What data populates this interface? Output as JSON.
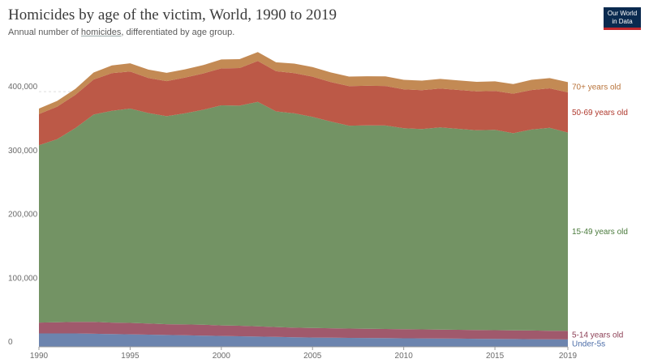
{
  "header": {
    "title": "Homicides by age of the victim, World, 1990 to 2019",
    "subtitle_prefix": "Annual number of ",
    "subtitle_link": "homicides",
    "subtitle_suffix": ", differentiated by age group."
  },
  "logo": {
    "line1": "Our World",
    "line2": "in Data"
  },
  "chart_data": {
    "type": "area",
    "stacked": true,
    "x": [
      1990,
      1991,
      1992,
      1993,
      1994,
      1995,
      1996,
      1997,
      1998,
      1999,
      2000,
      2001,
      2002,
      2003,
      2004,
      2005,
      2006,
      2007,
      2008,
      2009,
      2010,
      2011,
      2012,
      2013,
      2014,
      2015,
      2016,
      2017,
      2018,
      2019
    ],
    "xticks": [
      "1990",
      "1995",
      "2000",
      "2005",
      "2010",
      "2015",
      "2019"
    ],
    "xtick_values": [
      1990,
      1995,
      2000,
      2005,
      2010,
      2015,
      2019
    ],
    "yticks": [
      "0",
      "100,000",
      "200,000",
      "300,000",
      "400,000"
    ],
    "ytick_values": [
      0,
      100000,
      200000,
      300000,
      400000
    ],
    "ylim": [
      0,
      470000
    ],
    "grid": true,
    "series": [
      {
        "name": "Under-5s",
        "color": "#6c84ae",
        "values": [
          21000,
          21000,
          21000,
          20500,
          20000,
          19500,
          19000,
          18500,
          18000,
          17500,
          17000,
          16500,
          16000,
          15500,
          15000,
          14500,
          14300,
          14000,
          13800,
          13600,
          13400,
          13200,
          13000,
          12800,
          12600,
          12400,
          12200,
          12000,
          11800,
          11600
        ]
      },
      {
        "name": "5-14 years old",
        "color": "#a0596c",
        "values": [
          17000,
          17500,
          18000,
          18500,
          18000,
          18000,
          17500,
          17000,
          17000,
          17000,
          16500,
          16500,
          16000,
          15500,
          15000,
          15000,
          14800,
          14600,
          14400,
          14300,
          14200,
          14100,
          14000,
          13900,
          13800,
          13700,
          13600,
          13500,
          13400,
          13300
        ]
      },
      {
        "name": "15-49 years old",
        "color": "#739364",
        "values": [
          278000,
          287000,
          304000,
          325000,
          332000,
          336000,
          330000,
          326000,
          331000,
          337000,
          345000,
          345000,
          352000,
          338000,
          336000,
          331000,
          324000,
          318000,
          319000,
          319000,
          315000,
          314000,
          317000,
          315000,
          313000,
          314000,
          309000,
          315000,
          318000,
          311000
        ]
      },
      {
        "name": "50-69 years old",
        "color": "#bc5947",
        "values": [
          49000,
          51000,
          52000,
          55000,
          59000,
          58000,
          55000,
          55000,
          56000,
          57000,
          58000,
          59000,
          64000,
          63000,
          63000,
          63000,
          62000,
          62000,
          62000,
          62000,
          61000,
          61000,
          61000,
          61000,
          61000,
          61000,
          62000,
          62000,
          62000,
          63000
        ]
      },
      {
        "name": "70+ years old",
        "color": "#c38a54",
        "values": [
          8500,
          9000,
          9500,
          11000,
          12000,
          13000,
          13000,
          13000,
          13000,
          13000,
          14000,
          14000,
          14000,
          14000,
          15000,
          15000,
          15000,
          15000,
          15000,
          15000,
          15000,
          15000,
          15000,
          15000,
          15000,
          15000,
          15000,
          16000,
          16000,
          16000
        ]
      }
    ],
    "labels": [
      {
        "text": "70+ years old",
        "series": 4,
        "color": "#b8733a"
      },
      {
        "text": "50-69 years old",
        "series": 3,
        "color": "#b03a2e"
      },
      {
        "text": "15-49 years old",
        "series": 2,
        "color": "#4a7a3c"
      },
      {
        "text": "5-14 years old",
        "series": 1,
        "color": "#8c3f55"
      },
      {
        "text": "Under-5s",
        "series": 0,
        "color": "#4c6da8"
      }
    ]
  }
}
